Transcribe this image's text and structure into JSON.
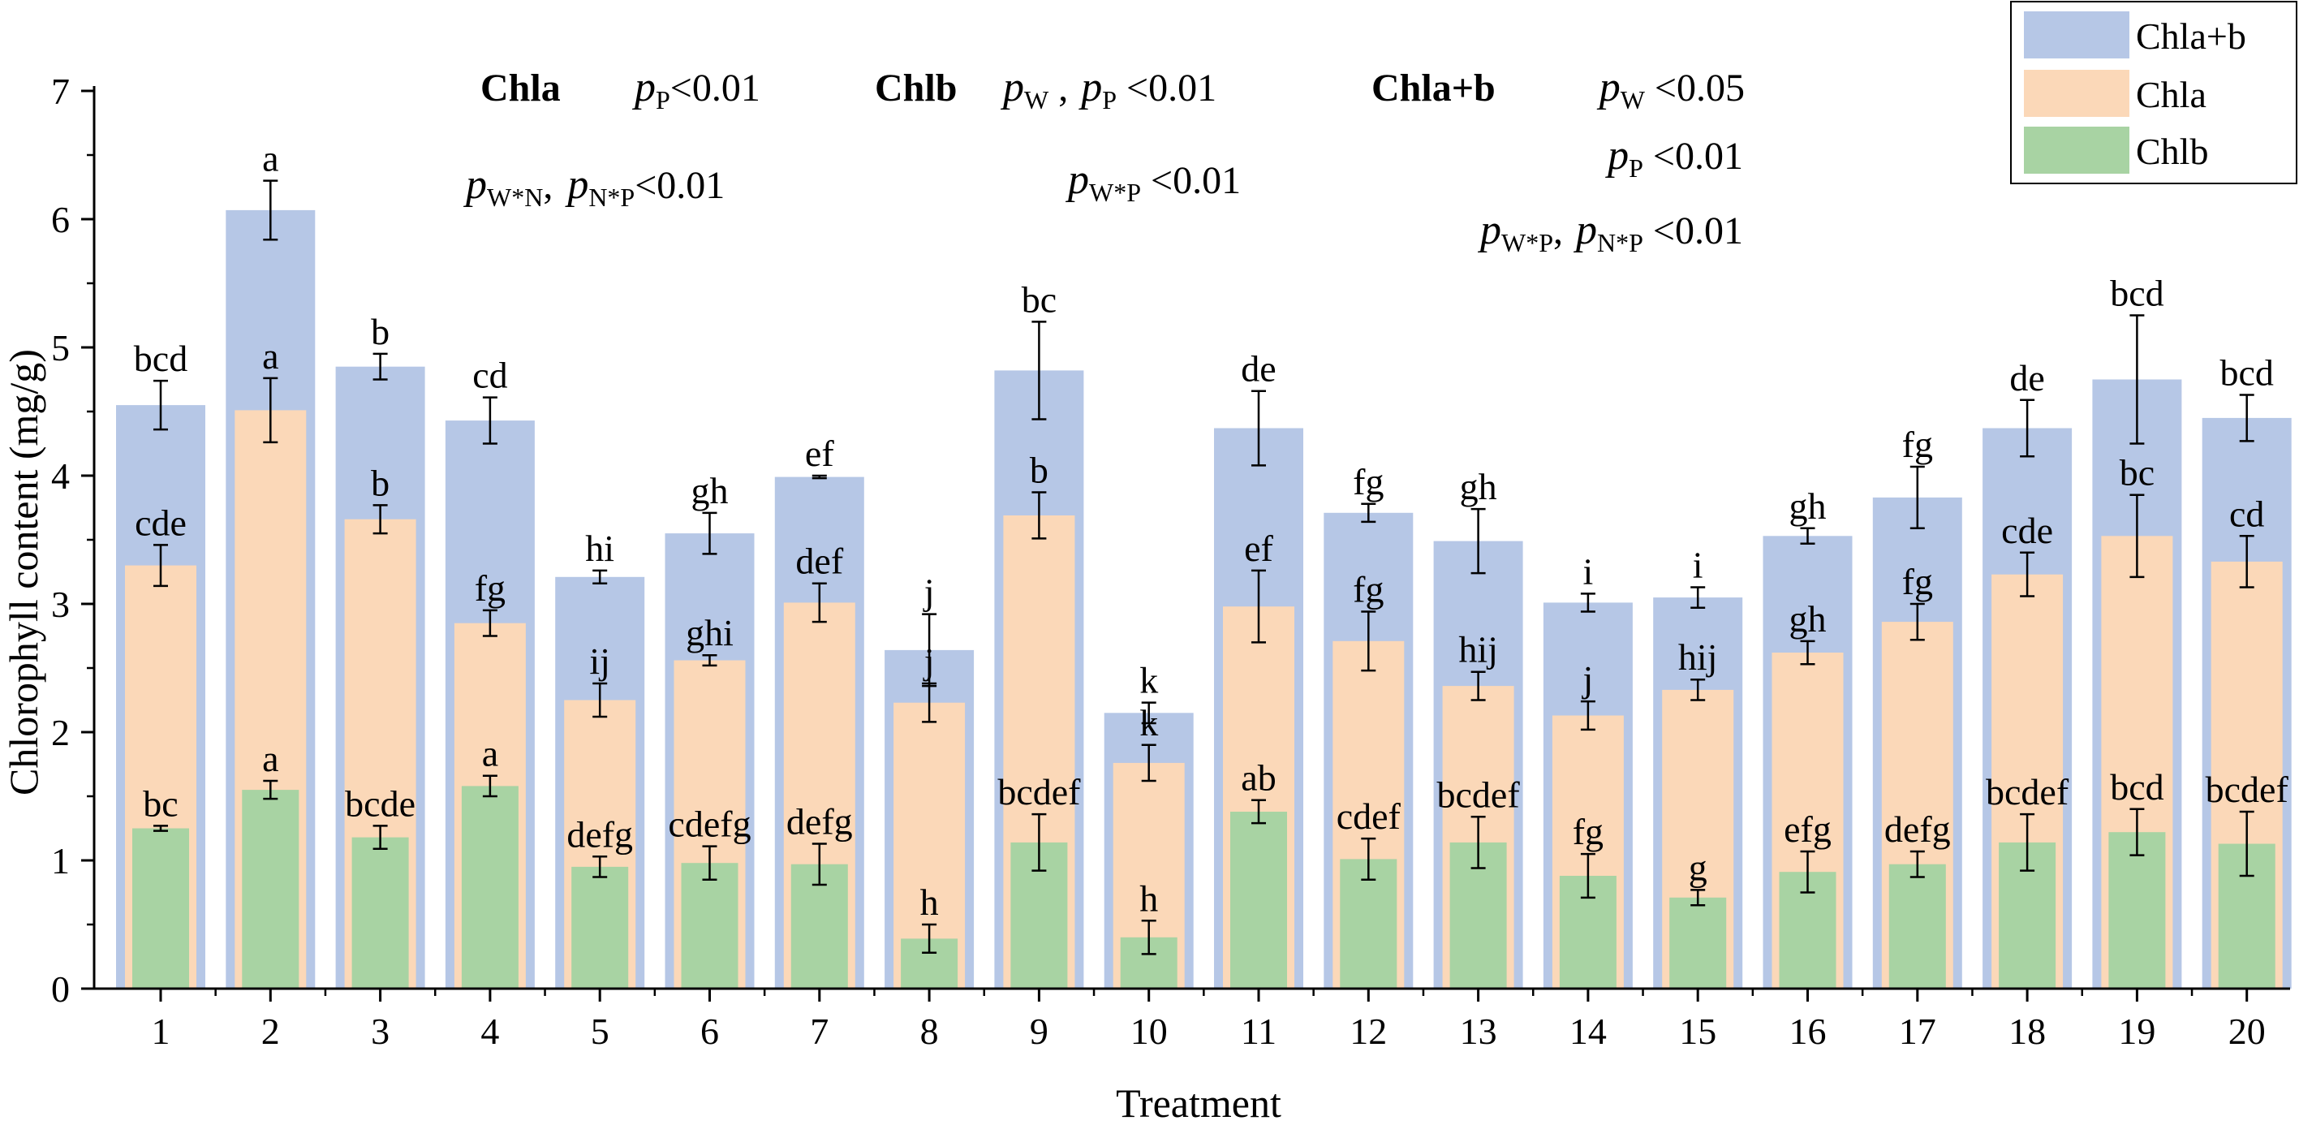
{
  "chart_data": {
    "type": "bar",
    "title": "",
    "xlabel": "Treatment",
    "ylabel": "Chlorophyll content (mg/g)",
    "ylim": [
      0,
      7
    ],
    "yticks": [
      "0",
      "1",
      "2",
      "3",
      "4",
      "5",
      "6",
      "7"
    ],
    "categories": [
      "1",
      "2",
      "3",
      "4",
      "5",
      "6",
      "7",
      "8",
      "9",
      "10",
      "11",
      "12",
      "13",
      "14",
      "15",
      "16",
      "17",
      "18",
      "19",
      "20"
    ],
    "series": [
      {
        "name": "Chla+b",
        "color": "#b6c7e6",
        "values": [
          4.55,
          6.07,
          4.85,
          4.43,
          3.21,
          3.55,
          3.99,
          2.64,
          4.82,
          2.15,
          4.37,
          3.71,
          3.49,
          3.01,
          3.05,
          3.53,
          3.83,
          4.37,
          4.75,
          4.45
        ],
        "errors": [
          0.19,
          0.23,
          0.1,
          0.18,
          0.05,
          0.16,
          0.01,
          0.28,
          0.38,
          0.08,
          0.29,
          0.07,
          0.25,
          0.07,
          0.08,
          0.06,
          0.24,
          0.22,
          0.5,
          0.18
        ],
        "letters": [
          "bcd",
          "a",
          "b",
          "cd",
          "hi",
          "gh",
          "ef",
          "j",
          "bc",
          "k",
          "de",
          "fg",
          "gh",
          "i",
          "i",
          "gh",
          "fg",
          "de",
          "bcd",
          "bcd"
        ]
      },
      {
        "name": "Chla",
        "color": "#fbd8b8",
        "values": [
          3.3,
          4.51,
          3.66,
          2.85,
          2.25,
          2.56,
          3.01,
          2.23,
          3.69,
          1.76,
          2.98,
          2.71,
          2.36,
          2.13,
          2.33,
          2.62,
          2.86,
          3.23,
          3.53,
          3.33
        ],
        "errors": [
          0.16,
          0.25,
          0.11,
          0.1,
          0.13,
          0.04,
          0.15,
          0.15,
          0.18,
          0.14,
          0.28,
          0.23,
          0.11,
          0.11,
          0.08,
          0.09,
          0.14,
          0.17,
          0.32,
          0.2
        ],
        "letters": [
          "cde",
          "a",
          "b",
          "fg",
          "ij",
          "ghi",
          "def",
          "j",
          "b",
          "k",
          "ef",
          "fg",
          "hij",
          "j",
          "hij",
          "gh",
          "fg",
          "cde",
          "bc",
          "cd"
        ]
      },
      {
        "name": "Chlb",
        "color": "#a8d3a3",
        "values": [
          1.25,
          1.55,
          1.18,
          1.58,
          0.95,
          0.98,
          0.97,
          0.39,
          1.14,
          0.4,
          1.38,
          1.01,
          1.14,
          0.88,
          0.71,
          0.91,
          0.97,
          1.14,
          1.22,
          1.13
        ],
        "errors": [
          0.02,
          0.07,
          0.09,
          0.08,
          0.08,
          0.13,
          0.16,
          0.11,
          0.22,
          0.13,
          0.09,
          0.16,
          0.2,
          0.17,
          0.06,
          0.16,
          0.1,
          0.22,
          0.18,
          0.25
        ],
        "letters": [
          "bc",
          "a",
          "bcde",
          "a",
          "defg",
          "cdefg",
          "defg",
          "h",
          "bcdef",
          "h",
          "ab",
          "cdef",
          "bcdef",
          "fg",
          "g",
          "efg",
          "defg",
          "bcdef",
          "bcd",
          "bcdef"
        ]
      }
    ],
    "legend": {
      "position": "top-right",
      "entries": [
        "Chla+b",
        "Chla",
        "Chlb"
      ]
    },
    "annotations": {
      "chla_title": "Chla",
      "chlb_title": "Chlb",
      "chlab_title": "Chla+b",
      "p": "p",
      "sub_P": "P",
      "sub_W": "W",
      "sub_WN": "W*N",
      "sub_NP": "N*P",
      "sub_WP": "W*P",
      "lt001": "<0.01",
      "lt001s": " <0.01",
      "lt005s": " <0.05",
      "comma": ",",
      "comma_s": " ,"
    }
  }
}
